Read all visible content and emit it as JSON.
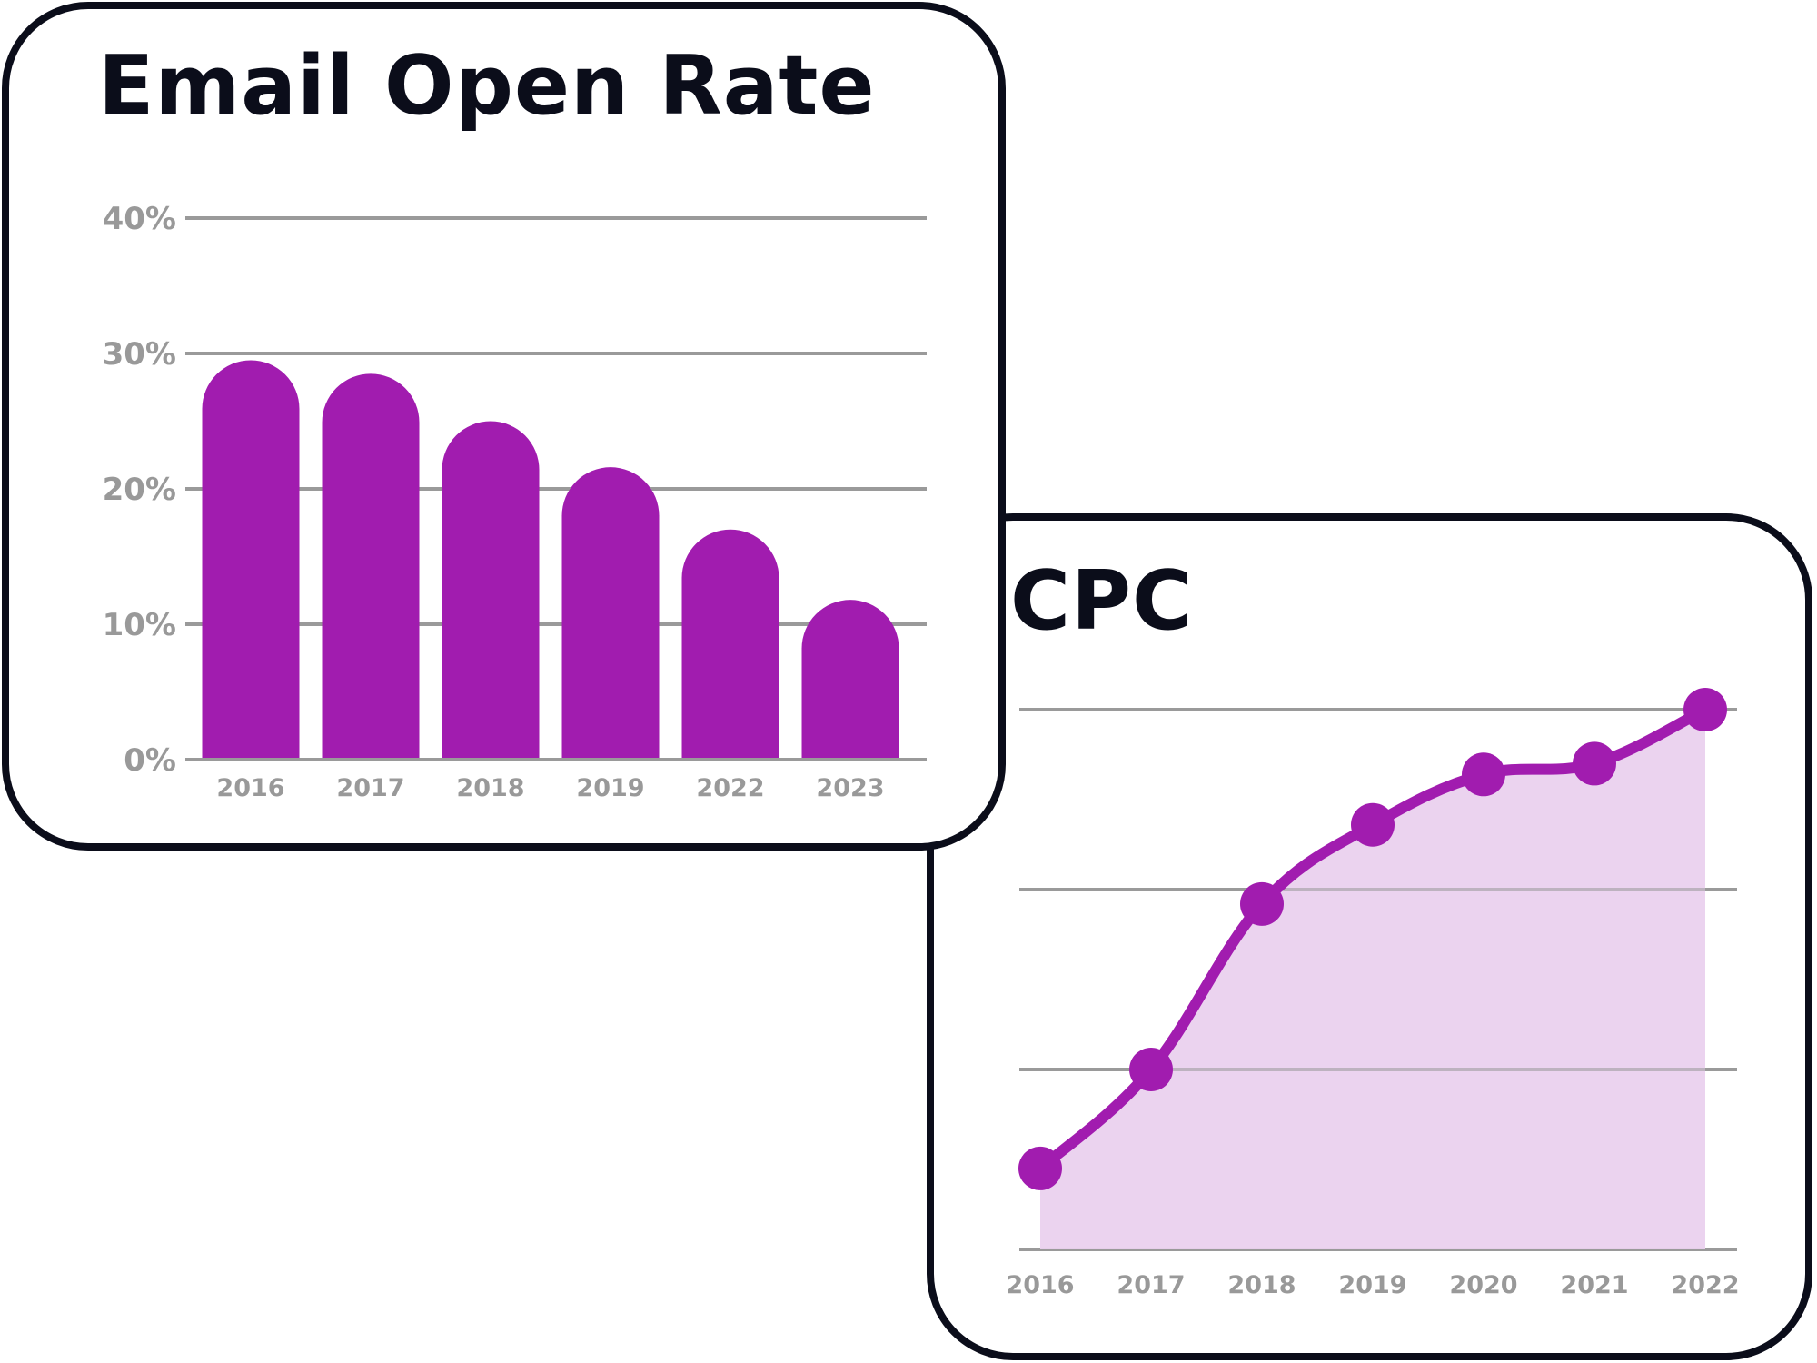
{
  "colors": {
    "bar": "#a11caf",
    "line": "#a11caf",
    "area_fill": "#ead1ee",
    "grid": "#9a9a9a",
    "tick_text": "#999999",
    "title": "#0b0d1a",
    "card_border": "#0b0d1a"
  },
  "email_card": {
    "title": "Email Open Rate"
  },
  "cpc_card": {
    "title": "CPC"
  },
  "chart_data": [
    {
      "type": "bar",
      "title": "Email Open Rate",
      "categories": [
        "2016",
        "2017",
        "2018",
        "2019",
        "2022",
        "2023"
      ],
      "values": [
        29.5,
        28.5,
        25,
        21.6,
        17,
        11.8
      ],
      "ylim": [
        0,
        40
      ],
      "yticks": [
        0,
        10,
        20,
        30,
        40
      ],
      "ytick_labels": [
        "0%",
        "10%",
        "20%",
        "30%",
        "40%"
      ],
      "grid": true,
      "legend": "none"
    },
    {
      "type": "area",
      "title": "CPC",
      "x": [
        "2016",
        "2017",
        "2018",
        "2019",
        "2020",
        "2021",
        "2022"
      ],
      "values": [
        0.45,
        1.0,
        1.92,
        2.36,
        2.64,
        2.7,
        3.0
      ],
      "ylim": [
        0,
        3
      ],
      "grid": true,
      "y_axis_labels_shown": false,
      "markers": true,
      "smooth": true,
      "legend": "none"
    }
  ]
}
